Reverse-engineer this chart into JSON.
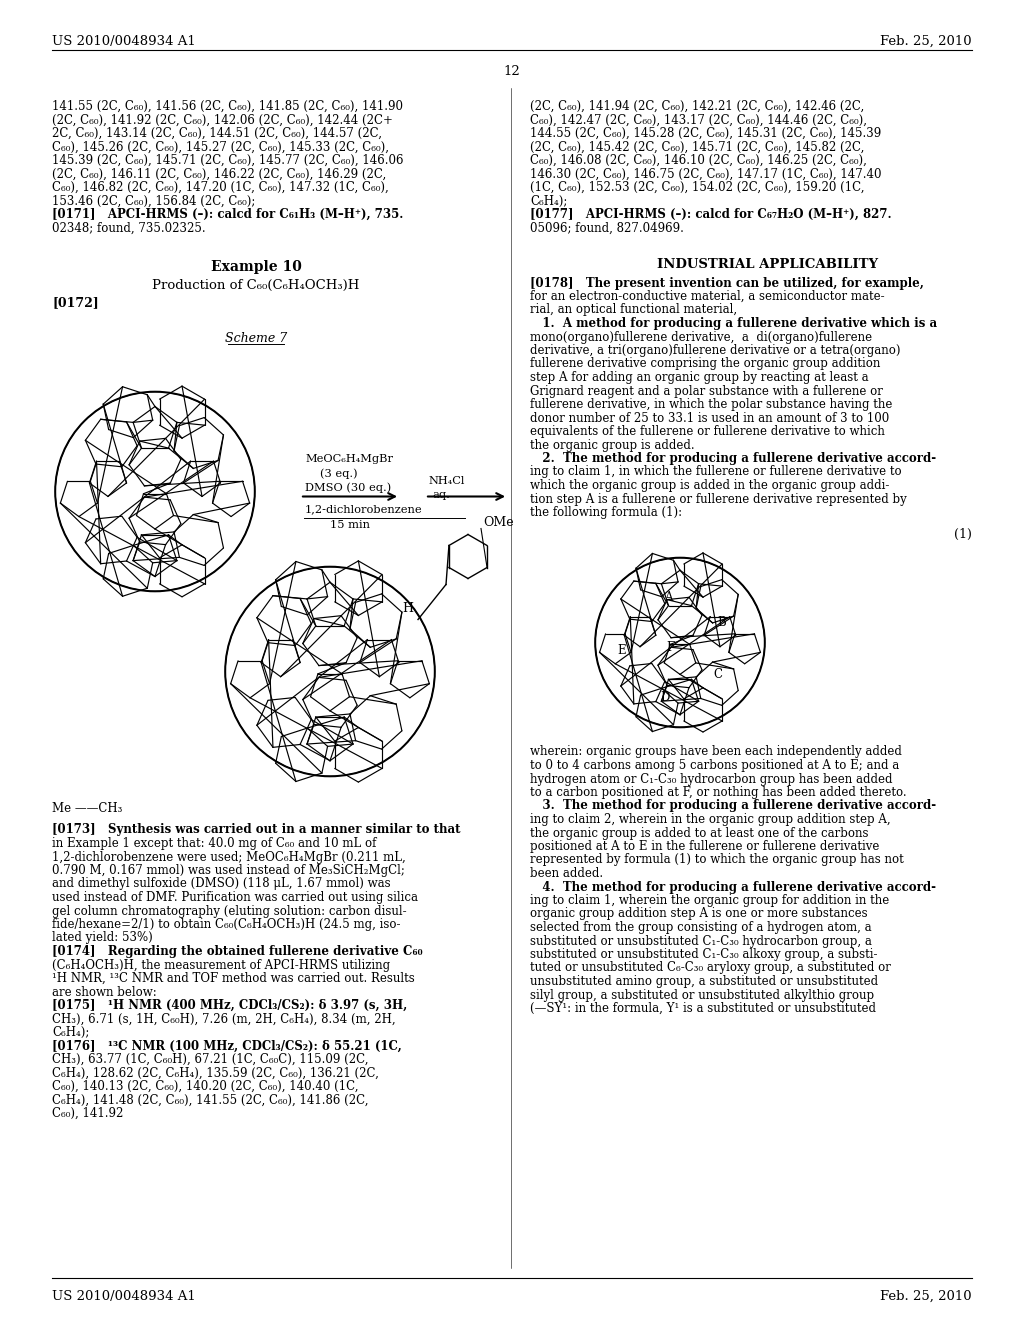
{
  "page_header_left": "US 2010/0048934 A1",
  "page_header_right": "Feb. 25, 2010",
  "page_number": "12",
  "background_color": "#ffffff",
  "left_col_nmr": [
    "141.55 (2C, C₆₀), 141.56 (2C, C₆₀), 141.85 (2C, C₆₀), 141.90",
    "(2C, C₆₀), 141.92 (2C, C₆₀), 142.06 (2C, C₆₀), 142.44 (2C+",
    "2C, C₆₀), 143.14 (2C, C₆₀), 144.51 (2C, C₆₀), 144.57 (2C,",
    "C₆₀), 145.26 (2C, C₆₀), 145.27 (2C, C₆₀), 145.33 (2C, C₆₀),",
    "145.39 (2C, C₆₀), 145.71 (2C, C₆₀), 145.77 (2C, C₆₀), 146.06",
    "(2C, C₆₀), 146.11 (2C, C₆₀), 146.22 (2C, C₆₀), 146.29 (2C,",
    "C₆₀), 146.82 (2C, C₆₀), 147.20 (1C, C₆₀), 147.32 (1C, C₆₀),",
    "153.46 (2C, C₆₀), 156.84 (2C, C₆₀);",
    "[0171]   APCI-HRMS (–): calcd for C₆₁H₃ (M–H⁺), 735.",
    "02348; found, 735.02325."
  ],
  "right_col_nmr": [
    "(2C, C₆₀), 141.94 (2C, C₆₀), 142.21 (2C, C₆₀), 142.46 (2C,",
    "C₆₀), 142.47 (2C, C₆₀), 143.17 (2C, C₆₀), 144.46 (2C, C₆₀),",
    "144.55 (2C, C₆₀), 145.28 (2C, C₆₀), 145.31 (2C, C₆₀), 145.39",
    "(2C, C₆₀), 145.42 (2C, C₆₀), 145.71 (2C, C₆₀), 145.82 (2C,",
    "C₆₀), 146.08 (2C, C₆₀), 146.10 (2C, C₆₀), 146.25 (2C, C₆₀),",
    "146.30 (2C, C₆₀), 146.75 (2C, C₆₀), 147.17 (1C, C₆₀), 147.40",
    "(1C, C₆₀), 152.53 (2C, C₆₀), 154.02 (2C, C₆₀), 159.20 (1C,",
    "C₆H₄);",
    "[0177]   APCI-HRMS (–): calcd for C₆₇H₂O (M–H⁺), 827.",
    "05096; found, 827.04969."
  ],
  "example10_title": "Example 10",
  "example10_subtitle": "Production of C₆₀(C₆H₄OCH₃)H",
  "scheme7_label": "Scheme 7",
  "rxn_line1": "MeOC₆H₄MgBr",
  "rxn_line2": "(3 eq.)",
  "rxn_line3": "DMSO (30 eq.)",
  "rxn_line4": "1,2-dichlorobenzene",
  "rxn_line5": "15 min",
  "rxn_right1": "NH₄Cl",
  "rxn_right2": "aq.",
  "me_label": "Me ——CH₃",
  "h_label": "H",
  "ome_label": "OMe",
  "industrial_title": "INDUSTRIAL APPLICABILITY",
  "right_body": [
    "[0178]   The present invention can be utilized, for example,",
    "for an electron-conductive material, a semiconductor mate-",
    "rial, an optical functional material,",
    "   1.  A method for producing a fullerene derivative which is a",
    "mono(organo)fullerene derivative,  a  di(organo)fullerene",
    "derivative, a tri(organo)fullerene derivative or a tetra(organo)",
    "fullerene derivative comprising the organic group addition",
    "step A for adding an organic group by reacting at least a",
    "Grignard reagent and a polar substance with a fullerene or",
    "fullerene derivative, in which the polar substance having the",
    "donor number of 25 to 33.1 is used in an amount of 3 to 100",
    "equivalents of the fullerene or fullerene derivative to which",
    "the organic group is added.",
    "   2.  The method for producing a fullerene derivative accord-",
    "ing to claim 1, in which the fullerene or fullerene derivative to",
    "which the organic group is added in the organic group addi-",
    "tion step A is a fullerene or fullerene derivative represented by",
    "the following formula (1):"
  ],
  "wherein_lines": [
    "wherein: organic groups have been each independently added",
    "to 0 to 4 carbons among 5 carbons positioned at A to E; and a",
    "hydrogen atom or C₁-C₃₀ hydrocarbon group has been added",
    "to a carbon positioned at F, or nothing has been added thereto.",
    "   3.  The method for producing a fullerene derivative accord-",
    "ing to claim 2, wherein in the organic group addition step A,",
    "the organic group is added to at least one of the carbons",
    "positioned at A to E in the fullerene or fullerene derivative",
    "represented by formula (1) to which the organic group has not",
    "been added.",
    "   4.  The method for producing a fullerene derivative accord-",
    "ing to claim 1, wherein the organic group for addition in the",
    "organic group addition step A is one or more substances",
    "selected from the group consisting of a hydrogen atom, a",
    "substituted or unsubstituted C₁-C₃₀ hydrocarbon group, a",
    "substituted or unsubstituted C₁-C₃₀ alkoxy group, a substi-",
    "tuted or unsubstituted C₆-C₃₀ aryloxy group, a substituted or",
    "unsubstituted amino group, a substituted or unsubstituted",
    "silyl group, a substituted or unsubstituted alkylthio group",
    "(—SY¹: in the formula, Y¹ is a substituted or unsubstituted"
  ],
  "left_body": [
    "[0173]   Synthesis was carried out in a manner similar to that",
    "in Example 1 except that: 40.0 mg of C₆₀ and 10 mL of",
    "1,2-dichlorobenzene were used; MeOC₆H₄MgBr (0.211 mL,",
    "0.790 M, 0.167 mmol) was used instead of Me₃SiCH₂MgCl;",
    "and dimethyl sulfoxide (DMSO) (118 μL, 1.67 mmol) was",
    "used instead of DMF. Purification was carried out using silica",
    "gel column chromatography (eluting solution: carbon disul-",
    "fide/hexane=2/1) to obtain C₆₀(C₆H₄OCH₃)H (24.5 mg, iso-",
    "lated yield: 53%)",
    "[0174]   Regarding the obtained fullerene derivative C₆₀",
    "(C₆H₄OCH₃)H, the measurement of APCI-HRMS utilizing",
    "¹H NMR, ¹³C NMR and TOF method was carried out. Results",
    "are shown below:",
    "[0175]   ¹H NMR (400 MHz, CDCl₃/CS₂): δ 3.97 (s, 3H,",
    "CH₃), 6.71 (s, 1H, C₆₀H), 7.26 (m, 2H, C₆H₄), 8.34 (m, 2H,",
    "C₆H₄);",
    "[0176]   ¹³C NMR (100 MHz, CDCl₃/CS₂): δ 55.21 (1C,",
    "CH₃), 63.77 (1C, C₆₀H), 67.21 (1C, C₆₀C), 115.09 (2C,",
    "C₆H₄), 128.62 (2C, C₆H₄), 135.59 (2C, C₆₀), 136.21 (2C,",
    "C₆₀), 140.13 (2C, C₆₀), 140.20 (2C, C₆₀), 140.40 (1C,",
    "C₆H₄), 141.48 (2C, C₆₀), 141.55 (2C, C₆₀), 141.86 (2C,",
    "C₆₀), 141.92"
  ]
}
